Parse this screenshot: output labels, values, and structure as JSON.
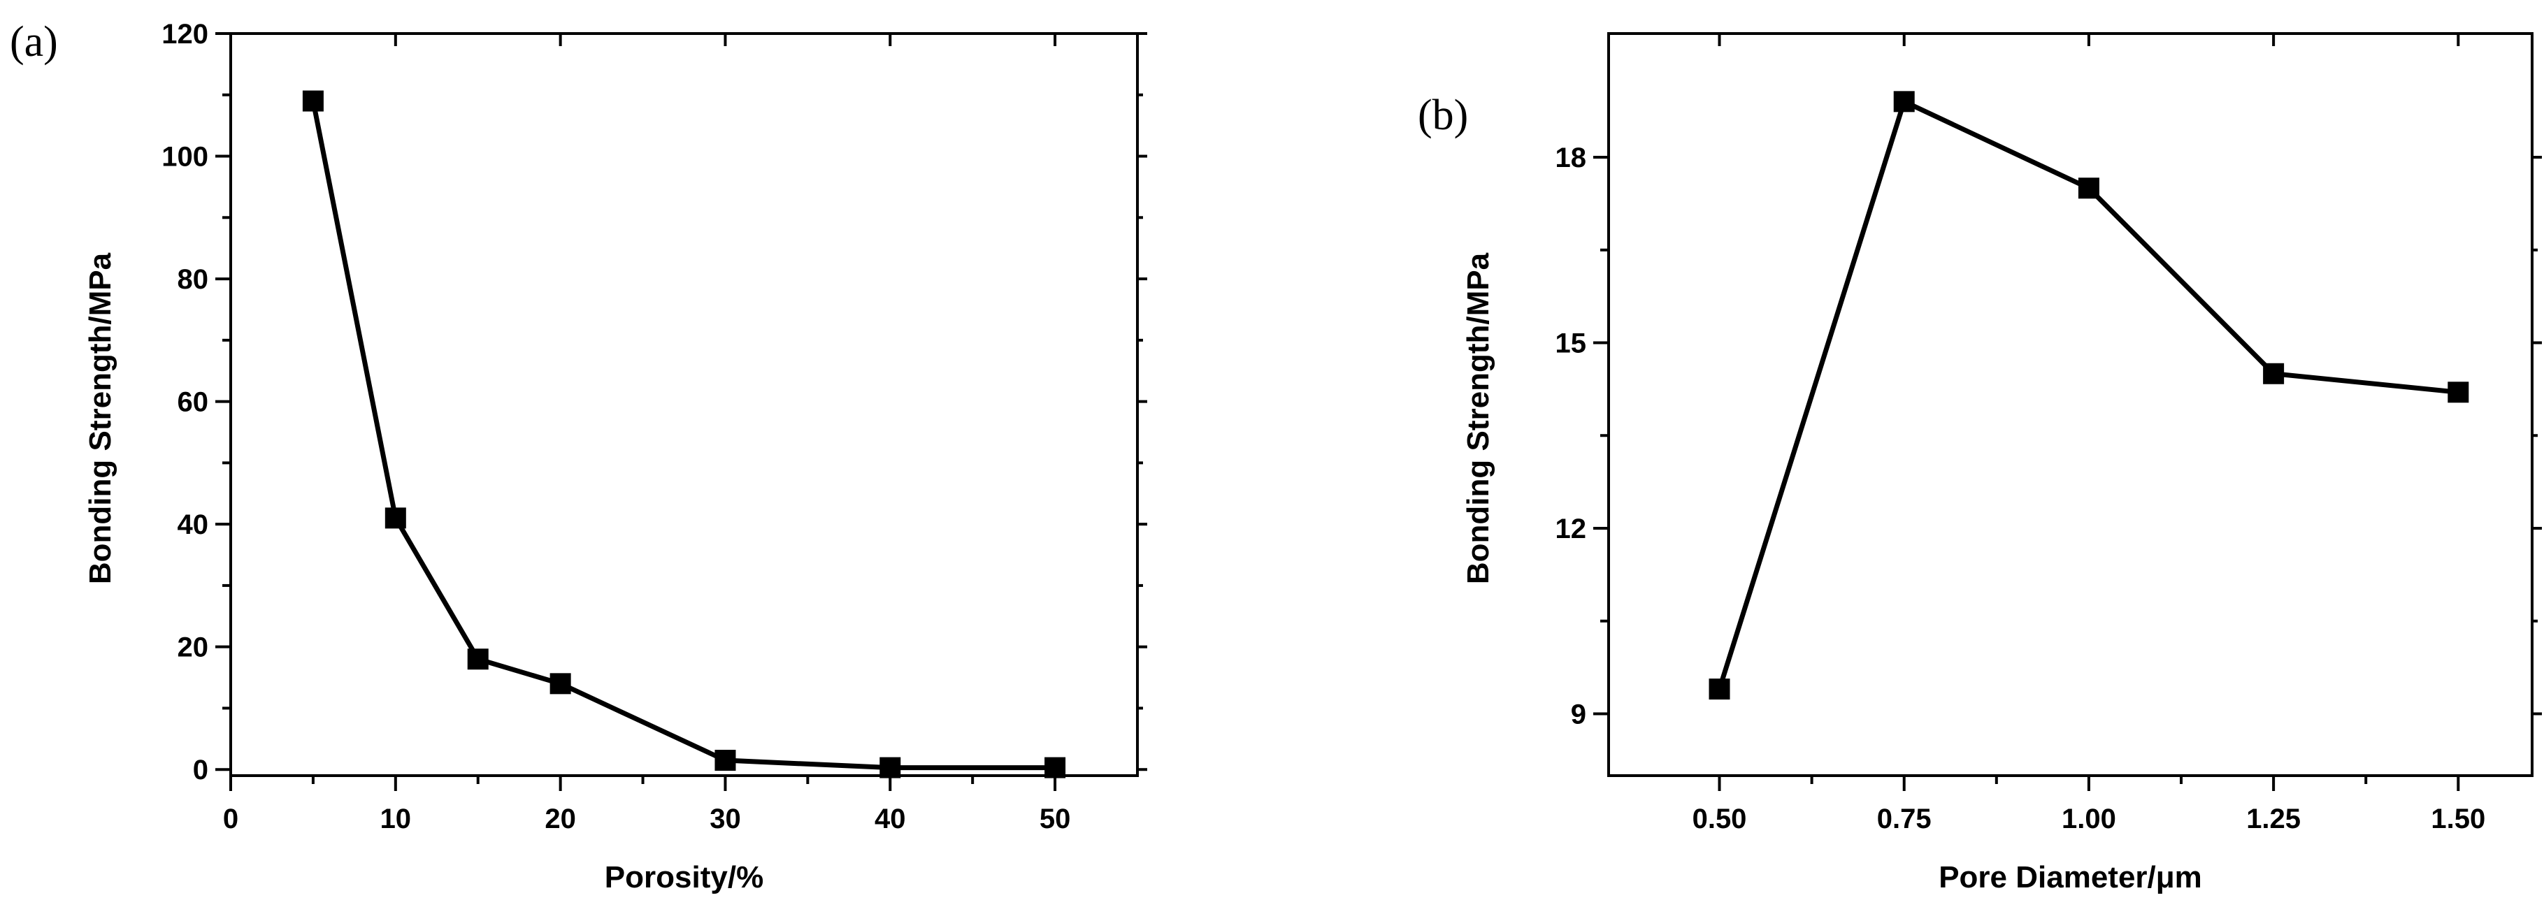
{
  "chart_data": [
    {
      "panel_label": "(a)",
      "type": "line",
      "xlabel": "Porosity/%",
      "ylabel": "Bonding Strength/MPa",
      "xlim": [
        0,
        55
      ],
      "ylim": [
        -1,
        120
      ],
      "xticks": [
        0,
        10,
        20,
        30,
        40,
        50
      ],
      "xtick_labels": [
        "0",
        "10",
        "20",
        "30",
        "40",
        "50"
      ],
      "yticks": [
        0,
        20,
        40,
        60,
        80,
        100,
        120
      ],
      "ytick_labels": [
        "0",
        "20",
        "40",
        "60",
        "80",
        "100",
        "120"
      ],
      "x": [
        5,
        10,
        15,
        20,
        30,
        40,
        50
      ],
      "y": [
        109,
        41,
        18,
        14,
        1.5,
        0.3,
        0.3
      ],
      "marker": "square",
      "grid": false
    },
    {
      "panel_label": "(b)",
      "type": "line",
      "xlabel": "Pore Diameter/μm",
      "ylabel": "Bonding Strength/MPa",
      "xlim": [
        0.35,
        1.6
      ],
      "ylim": [
        8,
        20
      ],
      "xticks": [
        0.5,
        0.75,
        1.0,
        1.25,
        1.5
      ],
      "xtick_labels": [
        "0.50",
        "0.75",
        "1.00",
        "1.25",
        "1.50"
      ],
      "yticks": [
        9,
        12,
        15,
        18
      ],
      "ytick_labels": [
        "9",
        "12",
        "15",
        "18"
      ],
      "x": [
        0.5,
        0.75,
        1.0,
        1.25,
        1.5
      ],
      "y": [
        9.4,
        18.9,
        17.5,
        14.5,
        14.2
      ],
      "marker": "square",
      "grid": false
    }
  ]
}
